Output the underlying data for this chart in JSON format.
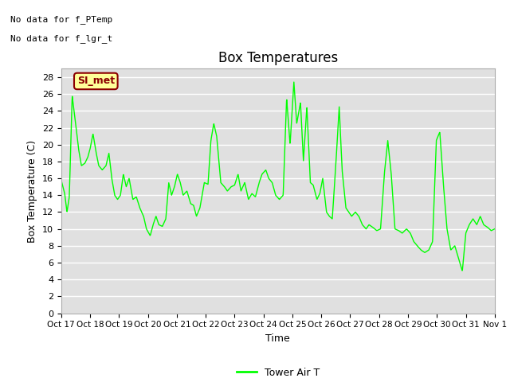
{
  "title": "Box Temperatures",
  "ylabel": "Box Temperature (C)",
  "xlabel": "Time",
  "top_left_text1": "No data for f_PTemp",
  "top_left_text2": "No data for f_lgr_t",
  "legend_label": "Tower Air T",
  "legend_color": "#00ff00",
  "line_color": "#00ff00",
  "background_color": "#e0e0e0",
  "ylim": [
    0,
    29
  ],
  "yticks": [
    0,
    2,
    4,
    6,
    8,
    10,
    12,
    14,
    16,
    18,
    20,
    22,
    24,
    26,
    28
  ],
  "xtick_labels": [
    "Oct 17",
    "Oct 18",
    "Oct 19",
    "Oct 20",
    "Oct 21",
    "Oct 22",
    "Oct 23",
    "Oct 24",
    "Oct 25",
    "Oct 26",
    "Oct 27",
    "Oct 28",
    "Oct 29",
    "Oct 30",
    "Oct 31",
    "Nov 1"
  ],
  "si_met_text": "SI_met",
  "si_met_facecolor": "#ffff99",
  "si_met_edgecolor": "#8b0000",
  "si_met_textcolor": "#8b0000",
  "x_vals": [
    0.0,
    0.12,
    0.2,
    0.28,
    0.38,
    0.5,
    0.6,
    0.7,
    0.82,
    0.92,
    1.0,
    1.1,
    1.2,
    1.3,
    1.42,
    1.55,
    1.65,
    1.75,
    1.85,
    1.95,
    2.05,
    2.15,
    2.25,
    2.35,
    2.48,
    2.6,
    2.72,
    2.85,
    2.95,
    3.08,
    3.18,
    3.28,
    3.38,
    3.5,
    3.62,
    3.72,
    3.82,
    3.92,
    4.02,
    4.12,
    4.22,
    4.35,
    4.48,
    4.58,
    4.68,
    4.8,
    4.95,
    5.08,
    5.18,
    5.28,
    5.38,
    5.52,
    5.65,
    5.75,
    5.88,
    6.0,
    6.12,
    6.22,
    6.35,
    6.48,
    6.6,
    6.72,
    6.85,
    6.95,
    7.08,
    7.18,
    7.3,
    7.42,
    7.55,
    7.68,
    7.8,
    7.92,
    8.05,
    8.15,
    8.28,
    8.38,
    8.5,
    8.62,
    8.72,
    8.85,
    8.95,
    9.05,
    9.18,
    9.28,
    9.38,
    9.5,
    9.62,
    9.72,
    9.85,
    9.95,
    10.05,
    10.18,
    10.3,
    10.42,
    10.55,
    10.65,
    10.78,
    10.92,
    11.05,
    11.18,
    11.3,
    11.42,
    11.55,
    11.68,
    11.8,
    11.95,
    12.08,
    12.2,
    12.32,
    12.45,
    12.58,
    12.72,
    12.85,
    12.98,
    13.1,
    13.22,
    13.35,
    13.48,
    13.62,
    13.75,
    13.88,
    14.0,
    14.12,
    14.25,
    14.38,
    14.5,
    14.62,
    14.75,
    14.88,
    15.0
  ],
  "y_vals": [
    15.8,
    14.2,
    12.0,
    13.8,
    25.8,
    22.5,
    19.5,
    17.5,
    17.8,
    18.5,
    19.5,
    21.3,
    19.2,
    17.5,
    17.0,
    17.5,
    19.0,
    16.0,
    14.0,
    13.5,
    14.0,
    16.5,
    15.0,
    16.0,
    13.5,
    13.8,
    12.5,
    11.5,
    10.0,
    9.2,
    10.5,
    11.5,
    10.5,
    10.3,
    11.2,
    15.5,
    14.0,
    15.0,
    16.5,
    15.5,
    14.0,
    14.5,
    13.0,
    12.8,
    11.5,
    12.5,
    15.5,
    15.3,
    20.5,
    22.5,
    21.0,
    15.5,
    15.0,
    14.5,
    15.0,
    15.2,
    16.5,
    14.5,
    15.5,
    13.5,
    14.2,
    13.8,
    15.5,
    16.5,
    17.0,
    16.0,
    15.5,
    14.0,
    13.5,
    14.0,
    25.5,
    20.0,
    27.5,
    22.5,
    25.0,
    18.0,
    24.5,
    15.5,
    15.2,
    13.5,
    14.2,
    16.0,
    12.0,
    11.5,
    11.2,
    17.5,
    24.5,
    17.0,
    12.5,
    12.0,
    11.5,
    12.0,
    11.5,
    10.5,
    10.0,
    10.5,
    10.2,
    9.8,
    10.0,
    16.5,
    20.5,
    16.5,
    10.0,
    9.8,
    9.5,
    10.0,
    9.5,
    8.5,
    8.0,
    7.5,
    7.2,
    7.5,
    8.5,
    20.5,
    21.5,
    15.5,
    10.0,
    7.5,
    8.0,
    6.5,
    5.0,
    9.5,
    10.5,
    11.2,
    10.5,
    11.5,
    10.5,
    10.2,
    9.8,
    10.0
  ]
}
